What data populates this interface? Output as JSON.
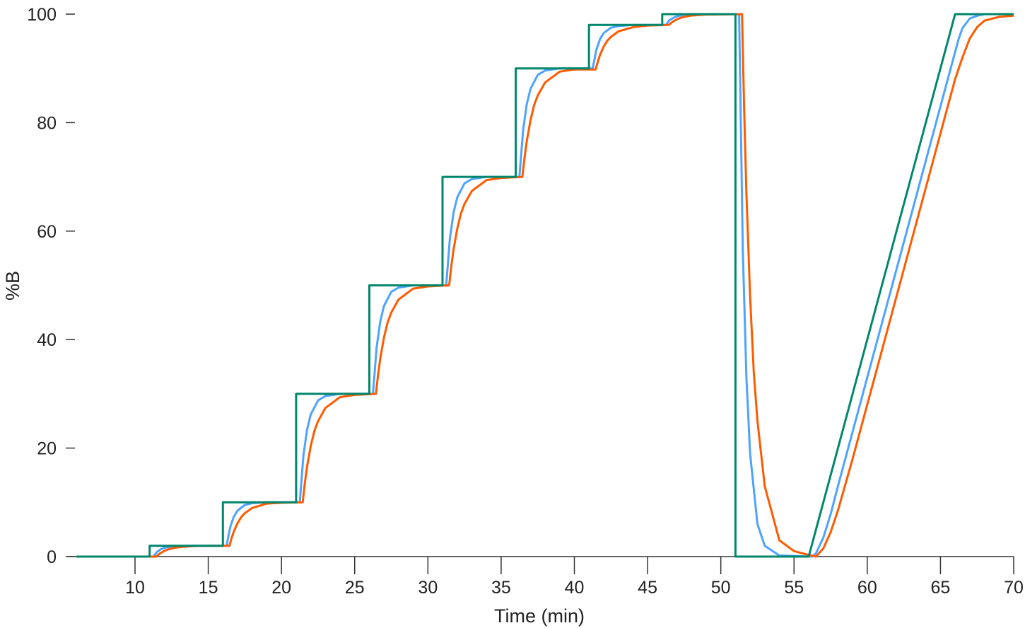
{
  "chart_data": {
    "type": "line",
    "title": "",
    "xlabel": "Time (min)",
    "ylabel": "%B",
    "xlim": [
      6,
      70
    ],
    "ylim": [
      0,
      100
    ],
    "xticks": [
      10,
      15,
      20,
      25,
      30,
      35,
      40,
      45,
      50,
      55,
      60,
      65,
      70
    ],
    "yticks": [
      0,
      20,
      40,
      60,
      80,
      100
    ],
    "grid": false,
    "legend": "none",
    "series": [
      {
        "color": "#00876c",
        "points": [
          [
            6,
            0
          ],
          [
            11,
            0
          ],
          [
            11,
            2
          ],
          [
            16,
            2
          ],
          [
            16,
            10
          ],
          [
            21,
            10
          ],
          [
            21,
            30
          ],
          [
            26,
            30
          ],
          [
            26,
            50
          ],
          [
            31,
            50
          ],
          [
            31,
            70
          ],
          [
            36,
            70
          ],
          [
            36,
            90
          ],
          [
            41,
            90
          ],
          [
            41,
            98
          ],
          [
            46,
            98
          ],
          [
            46,
            100
          ],
          [
            51,
            100
          ],
          [
            51,
            0
          ],
          [
            56,
            0
          ],
          [
            66,
            100
          ],
          [
            70,
            100
          ]
        ]
      },
      {
        "color": "#4da3ff",
        "points": [
          [
            6,
            0
          ],
          [
            11.25,
            0
          ],
          [
            11.5,
            0.86
          ],
          [
            11.75,
            1.34
          ],
          [
            12,
            1.62
          ],
          [
            12.5,
            1.88
          ],
          [
            13,
            1.96
          ],
          [
            14,
            2
          ],
          [
            16.25,
            2
          ],
          [
            16.5,
            5.44
          ],
          [
            16.75,
            7.36
          ],
          [
            17,
            8.48
          ],
          [
            17.5,
            9.52
          ],
          [
            18,
            9.84
          ],
          [
            19,
            10
          ],
          [
            21.25,
            10
          ],
          [
            21.5,
            18.6
          ],
          [
            21.75,
            23.4
          ],
          [
            22,
            26.2
          ],
          [
            22.5,
            28.8
          ],
          [
            23,
            29.6
          ],
          [
            24,
            30
          ],
          [
            26.25,
            30
          ],
          [
            26.5,
            38.6
          ],
          [
            26.75,
            43.4
          ],
          [
            27,
            46.2
          ],
          [
            27.5,
            48.8
          ],
          [
            28,
            49.6
          ],
          [
            29,
            50
          ],
          [
            31.25,
            50
          ],
          [
            31.5,
            58.6
          ],
          [
            31.75,
            63.4
          ],
          [
            32,
            66.2
          ],
          [
            32.5,
            68.8
          ],
          [
            33,
            69.6
          ],
          [
            34,
            70
          ],
          [
            36.25,
            70
          ],
          [
            36.5,
            78.6
          ],
          [
            36.75,
            83.4
          ],
          [
            37,
            86.2
          ],
          [
            37.5,
            88.8
          ],
          [
            38,
            89.6
          ],
          [
            39,
            90
          ],
          [
            41.25,
            90
          ],
          [
            41.5,
            93.4
          ],
          [
            41.75,
            95.4
          ],
          [
            42,
            96.5
          ],
          [
            42.5,
            97.5
          ],
          [
            43,
            97.8
          ],
          [
            44,
            98
          ],
          [
            46.25,
            98
          ],
          [
            46.5,
            98.9
          ],
          [
            46.75,
            99.3
          ],
          [
            47,
            99.6
          ],
          [
            47.5,
            99.9
          ],
          [
            48,
            100
          ],
          [
            51.25,
            100
          ],
          [
            51.5,
            57
          ],
          [
            51.75,
            33
          ],
          [
            52,
            19
          ],
          [
            52.5,
            6
          ],
          [
            53,
            2
          ],
          [
            54,
            0.2
          ],
          [
            56.25,
            0
          ],
          [
            56.5,
            0.6
          ],
          [
            57,
            3.5
          ],
          [
            57.5,
            7.8
          ],
          [
            58,
            13
          ],
          [
            60,
            33
          ],
          [
            62,
            53
          ],
          [
            64,
            73
          ],
          [
            66,
            93
          ],
          [
            66.25,
            95.5
          ],
          [
            66.5,
            97.4
          ],
          [
            67,
            99.2
          ],
          [
            67.5,
            99.7
          ],
          [
            68,
            100
          ],
          [
            70,
            100
          ]
        ]
      },
      {
        "color": "#ff5a00",
        "points": [
          [
            6,
            0
          ],
          [
            11.45,
            0
          ],
          [
            11.6,
            0.36
          ],
          [
            11.75,
            0.66
          ],
          [
            12,
            1.04
          ],
          [
            12.25,
            1.32
          ],
          [
            12.5,
            1.5
          ],
          [
            13,
            1.74
          ],
          [
            14,
            1.94
          ],
          [
            15,
            1.98
          ],
          [
            16.45,
            2
          ],
          [
            16.6,
            3.44
          ],
          [
            16.75,
            4.64
          ],
          [
            17,
            6.16
          ],
          [
            17.25,
            7.28
          ],
          [
            17.5,
            8
          ],
          [
            18,
            8.96
          ],
          [
            19,
            9.76
          ],
          [
            20,
            9.92
          ],
          [
            21.45,
            10
          ],
          [
            21.6,
            13.6
          ],
          [
            21.75,
            16.6
          ],
          [
            22,
            20.4
          ],
          [
            22.25,
            23.2
          ],
          [
            22.5,
            25
          ],
          [
            23,
            27.4
          ],
          [
            24,
            29.4
          ],
          [
            25,
            29.8
          ],
          [
            26.45,
            30
          ],
          [
            26.6,
            33.6
          ],
          [
            26.75,
            36.6
          ],
          [
            27,
            40.4
          ],
          [
            27.25,
            43.2
          ],
          [
            27.5,
            45
          ],
          [
            28,
            47.4
          ],
          [
            29,
            49.4
          ],
          [
            30,
            49.8
          ],
          [
            31.45,
            50
          ],
          [
            31.6,
            53.6
          ],
          [
            31.75,
            56.6
          ],
          [
            32,
            60.4
          ],
          [
            32.25,
            63.2
          ],
          [
            32.5,
            65
          ],
          [
            33,
            67.4
          ],
          [
            34,
            69.4
          ],
          [
            35,
            69.8
          ],
          [
            36.45,
            70
          ],
          [
            36.6,
            73.6
          ],
          [
            36.75,
            76.6
          ],
          [
            37,
            80.4
          ],
          [
            37.25,
            83.2
          ],
          [
            37.5,
            85
          ],
          [
            38,
            87.4
          ],
          [
            39,
            89.4
          ],
          [
            40,
            89.8
          ],
          [
            41.45,
            89.8
          ],
          [
            41.6,
            91.2
          ],
          [
            41.75,
            92.5
          ],
          [
            42,
            94
          ],
          [
            42.25,
            95.1
          ],
          [
            42.5,
            95.8
          ],
          [
            43,
            96.8
          ],
          [
            44,
            97.6
          ],
          [
            45,
            97.9
          ],
          [
            46.45,
            98
          ],
          [
            46.6,
            98.36
          ],
          [
            46.75,
            98.66
          ],
          [
            47,
            99.04
          ],
          [
            47.25,
            99.32
          ],
          [
            47.5,
            99.5
          ],
          [
            48,
            99.74
          ],
          [
            49,
            99.94
          ],
          [
            51.45,
            100
          ],
          [
            51.6,
            82
          ],
          [
            51.75,
            67
          ],
          [
            52,
            48
          ],
          [
            52.25,
            34
          ],
          [
            52.5,
            25
          ],
          [
            53,
            13
          ],
          [
            54,
            3
          ],
          [
            55,
            1
          ],
          [
            56,
            0.3
          ],
          [
            56.5,
            0
          ],
          [
            57,
            1.5
          ],
          [
            57.5,
            4.5
          ],
          [
            58,
            8.5
          ],
          [
            59,
            18
          ],
          [
            60,
            28
          ],
          [
            62,
            48
          ],
          [
            64,
            68
          ],
          [
            66,
            88
          ],
          [
            66.5,
            92
          ],
          [
            67,
            95.5
          ],
          [
            67.5,
            97.6
          ],
          [
            68,
            98.8
          ],
          [
            69,
            99.5
          ],
          [
            70,
            99.7
          ]
        ]
      }
    ]
  }
}
